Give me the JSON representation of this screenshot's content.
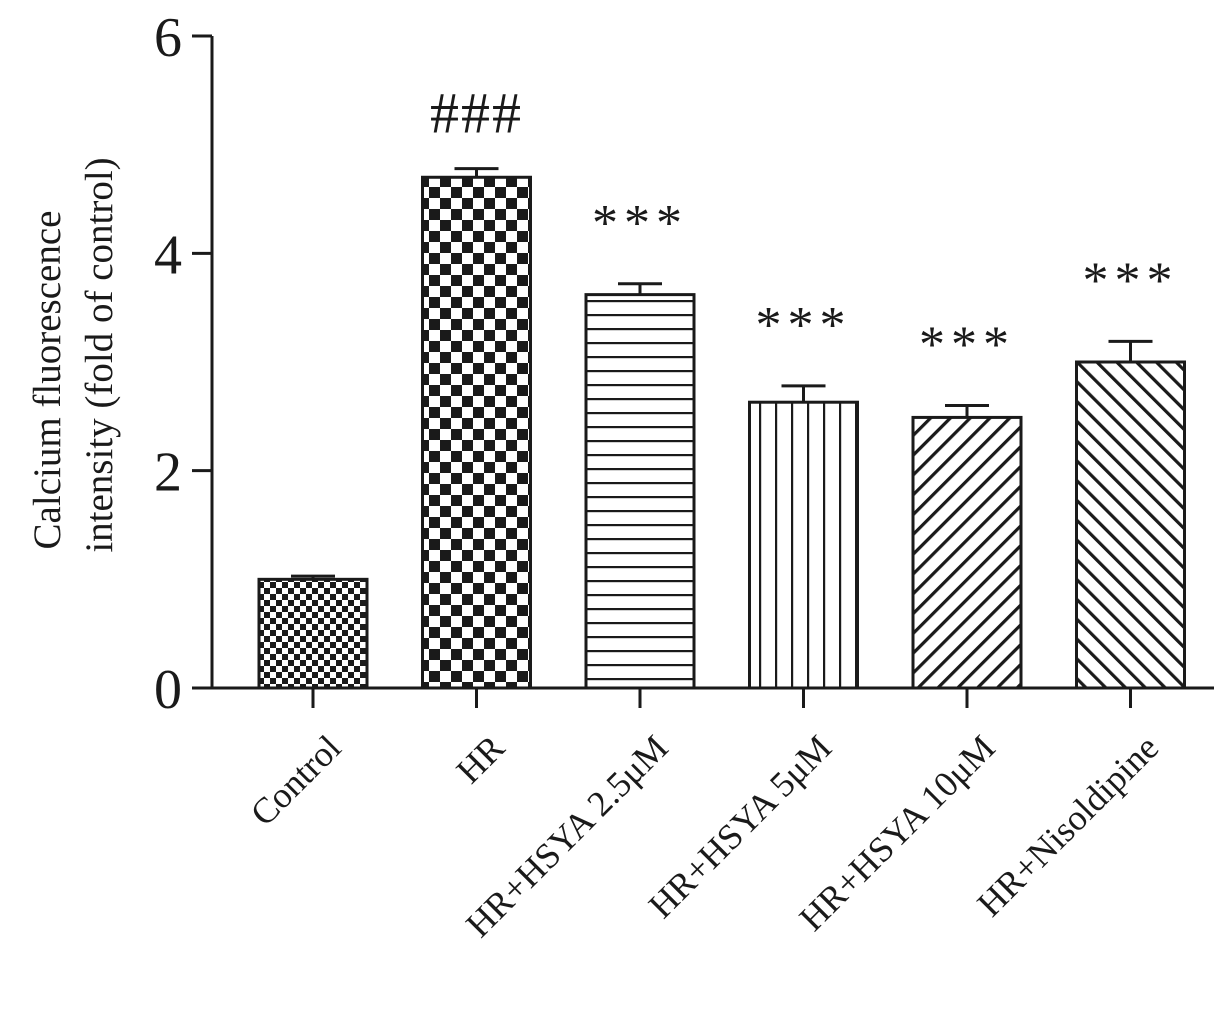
{
  "chart_data": {
    "type": "bar",
    "title": "",
    "xlabel": "",
    "ylabel_line1": "Calcium fluorescence",
    "ylabel_line2": "intensity (fold of control)",
    "ylim": [
      0,
      6
    ],
    "yticks": [
      0,
      2,
      4,
      6
    ],
    "categories": [
      "Control",
      "HR",
      "HR+HSYA 2.5μM",
      "HR+HSYA 5μM",
      "HR+HSYA 10μM",
      "HR+Nisoldipine"
    ],
    "values": [
      1.0,
      4.7,
      3.62,
      2.63,
      2.49,
      3.0
    ],
    "errors": [
      0.03,
      0.08,
      0.1,
      0.15,
      0.11,
      0.19
    ],
    "annotations": [
      "",
      "###",
      "***",
      "***",
      "***",
      "***"
    ],
    "patterns": [
      "fine-checker",
      "checker",
      "horizontal-lines",
      "vertical-lines",
      "diagonal-up",
      "diagonal-down"
    ],
    "grid": false,
    "colors": {
      "ink": "#1a1a1a",
      "fill": "#ffffff"
    }
  }
}
